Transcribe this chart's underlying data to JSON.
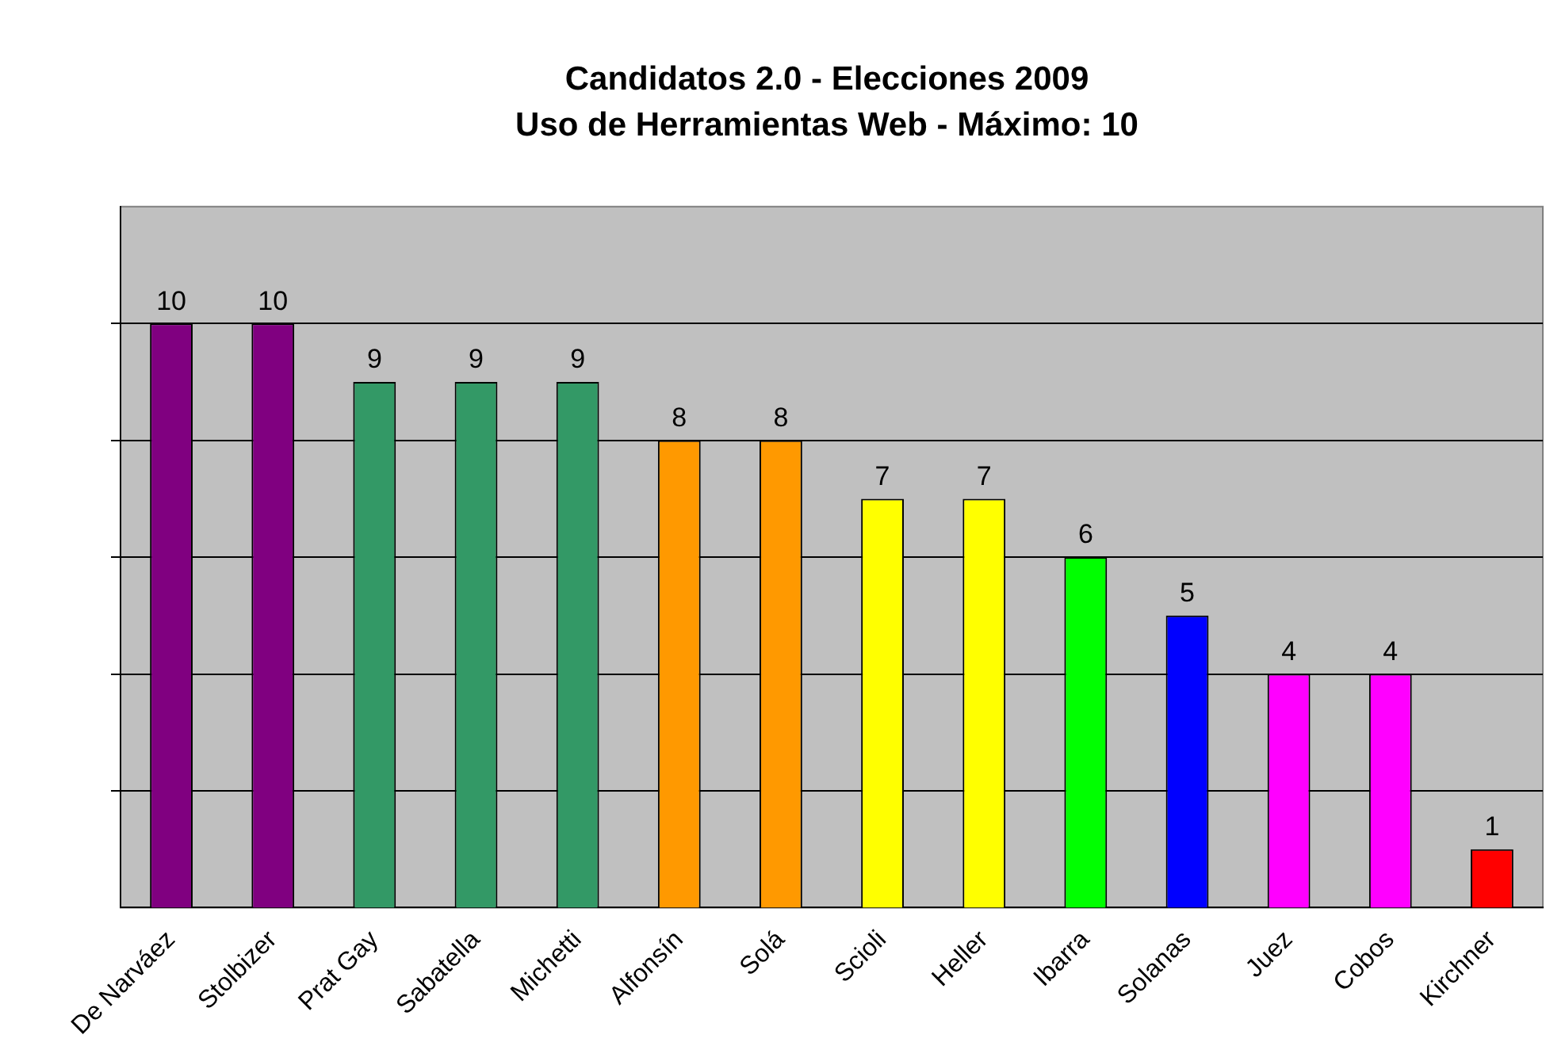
{
  "chart_data": {
    "type": "bar",
    "title": "Candidatos 2.0 - Elecciones 2009",
    "subtitle": "Uso de Herramientas Web - Máximo: 10",
    "categories": [
      "De Narváez",
      "Stolbizer",
      "Prat Gay",
      "Sabatella",
      "Michetti",
      "Alfonsín",
      "Solá",
      "Scioli",
      "Heller",
      "Ibarra",
      "Solanas",
      "Juez",
      "Cobos",
      "Kirchner"
    ],
    "values": [
      10,
      10,
      9,
      9,
      9,
      8,
      8,
      7,
      7,
      6,
      5,
      4,
      4,
      1
    ],
    "colors": [
      "#800080",
      "#800080",
      "#339966",
      "#339966",
      "#339966",
      "#ff9900",
      "#ff9900",
      "#ffff00",
      "#ffff00",
      "#00ff00",
      "#0000ff",
      "#ff00ff",
      "#ff00ff",
      "#ff0000"
    ],
    "ylim": [
      0,
      12
    ],
    "yticks": [
      {
        "value": 0,
        "label": null
      },
      {
        "value": 2,
        "label": null
      },
      {
        "value": 4,
        "label": null
      },
      {
        "value": 6,
        "label": null
      },
      {
        "value": 8,
        "label": null
      },
      {
        "value": 10,
        "label": null
      },
      {
        "value": 12,
        "label": null
      }
    ],
    "grid": "y",
    "tick_labels": "x",
    "data_labels": true
  }
}
